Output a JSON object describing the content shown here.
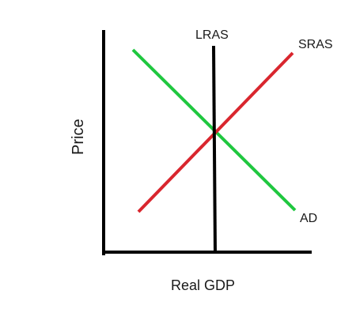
{
  "diagram": {
    "axes": {
      "x_label": "Real GDP",
      "y_label": "Price",
      "color": "#000000"
    },
    "curves": [
      {
        "id": "lras",
        "label": "LRAS",
        "color": "#000000",
        "orientation": "vertical"
      },
      {
        "id": "sras",
        "label": "SRAS",
        "color": "#d9262e",
        "orientation": "upward"
      },
      {
        "id": "ad",
        "label": "AD",
        "color": "#1fc73f",
        "orientation": "downward"
      }
    ]
  }
}
